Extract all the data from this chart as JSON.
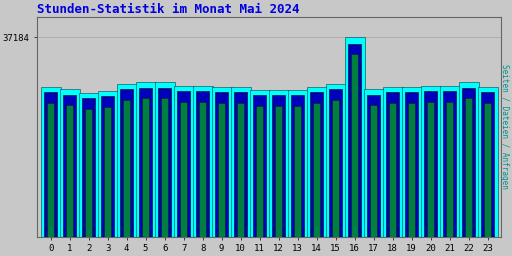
{
  "title": "Stunden-Statistik im Monat Mai 2024",
  "title_color": "#0000dd",
  "ylabel_right": "Seiten / Dateien / Anfragen",
  "ytick_label": "37184",
  "plot_bg_color": "#c8c8c8",
  "outer_bg": "#c8c8c8",
  "hours": [
    0,
    1,
    2,
    3,
    4,
    5,
    6,
    7,
    8,
    9,
    10,
    11,
    12,
    13,
    14,
    15,
    16,
    17,
    18,
    19,
    20,
    21,
    22,
    23
  ],
  "seiten": [
    28000,
    27500,
    26800,
    27200,
    28500,
    28800,
    28800,
    28200,
    28200,
    27900,
    27900,
    27400,
    27400,
    27400,
    27900,
    28500,
    37184,
    27500,
    27900,
    27900,
    28200,
    28200,
    28800,
    27900
  ],
  "dateien": [
    27000,
    26500,
    25800,
    26200,
    27500,
    27800,
    27800,
    27200,
    27200,
    26900,
    26900,
    26400,
    26400,
    26400,
    26900,
    27500,
    36000,
    26500,
    26900,
    26900,
    27200,
    27200,
    27800,
    26900
  ],
  "anfragen": [
    25000,
    24500,
    23800,
    24200,
    25500,
    25800,
    25800,
    25200,
    25200,
    24900,
    24900,
    24400,
    24400,
    24400,
    24900,
    25500,
    34000,
    24500,
    24900,
    24900,
    25200,
    25200,
    25800,
    24900
  ],
  "color_seiten": "#00ffff",
  "color_dateien": "#0000bb",
  "color_anfragen": "#008040",
  "bar_width": 0.35,
  "ylim_max": 41000,
  "grid_color": "#aaaaaa",
  "font_family": "monospace",
  "right_label_color": "#009090"
}
